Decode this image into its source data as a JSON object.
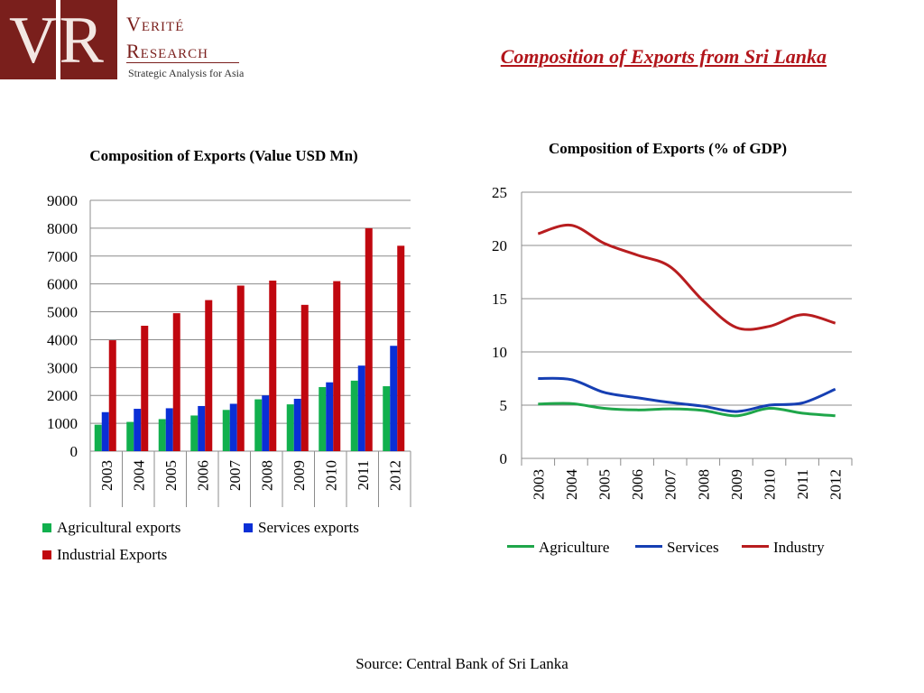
{
  "logo": {
    "monogram": "VR",
    "line1": "Verité",
    "line2": "Research",
    "tagline": "Strategic Analysis for Asia",
    "brand_color": "#7a1f1c"
  },
  "page_title": "Composition of Exports from Sri Lanka",
  "source": "Source: Central Bank of Sri Lanka",
  "chart_data": [
    {
      "type": "bar",
      "title": "Composition of Exports (Value USD Mn)",
      "categories": [
        "2003",
        "2004",
        "2005",
        "2006",
        "2007",
        "2008",
        "2009",
        "2010",
        "2011",
        "2012"
      ],
      "ylim": [
        0,
        9000
      ],
      "yticks": [
        0,
        1000,
        2000,
        3000,
        4000,
        5000,
        6000,
        7000,
        8000,
        9000
      ],
      "grid": true,
      "legend_position": "bottom",
      "series": [
        {
          "name": "Agricultural exports",
          "color": "#11b04e",
          "values": [
            950,
            1050,
            1150,
            1280,
            1480,
            1860,
            1680,
            2300,
            2530,
            2330
          ]
        },
        {
          "name": "Services exports",
          "color": "#0a2fd6",
          "values": [
            1400,
            1520,
            1540,
            1620,
            1700,
            2000,
            1880,
            2470,
            3070,
            3780
          ]
        },
        {
          "name": "Industrial Exports",
          "color": "#c0070f",
          "values": [
            3980,
            4500,
            4950,
            5420,
            5940,
            6120,
            5250,
            6100,
            8000,
            7370
          ]
        }
      ]
    },
    {
      "type": "line",
      "title": "Composition of Exports (% of GDP)",
      "categories": [
        "2003",
        "2004",
        "2005",
        "2006",
        "2007",
        "2008",
        "2009",
        "2010",
        "2011",
        "2012"
      ],
      "ylim": [
        0,
        25
      ],
      "yticks": [
        0,
        5,
        10,
        15,
        20,
        25
      ],
      "grid": true,
      "legend_position": "bottom",
      "series": [
        {
          "name": "Agriculture",
          "color": "#1fa64a",
          "values": [
            5.1,
            5.15,
            4.7,
            4.55,
            4.65,
            4.5,
            4.0,
            4.7,
            4.25,
            4.0
          ]
        },
        {
          "name": "Services",
          "color": "#163fb3",
          "values": [
            7.5,
            7.4,
            6.2,
            5.7,
            5.25,
            4.9,
            4.4,
            5.0,
            5.2,
            6.5
          ]
        },
        {
          "name": "Industry",
          "color": "#b81d1f",
          "values": [
            21.1,
            21.9,
            20.2,
            19.1,
            18.0,
            14.8,
            12.3,
            12.4,
            13.5,
            12.7
          ]
        }
      ]
    }
  ]
}
